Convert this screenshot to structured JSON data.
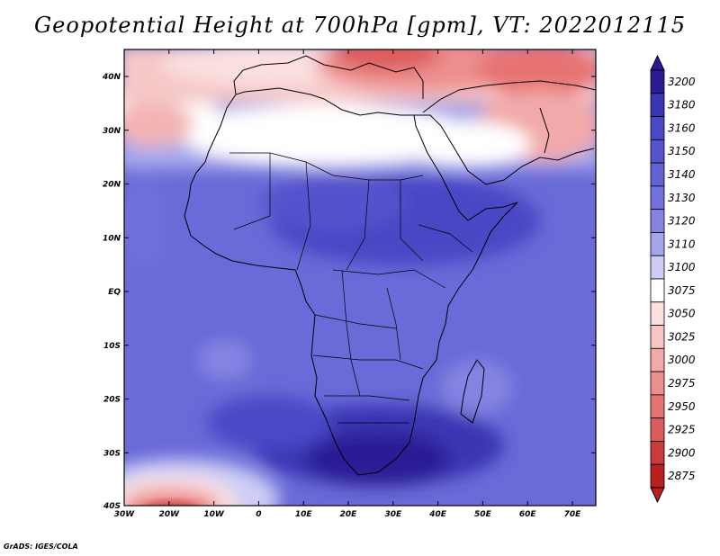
{
  "title": "Geopotential Height at 700hPa [gpm], VT: 2022012115",
  "credit": "GrADS: IGES/COLA",
  "map": {
    "lat_labels": [
      "40N",
      "30N",
      "20N",
      "10N",
      "EQ",
      "10S",
      "20S",
      "30S",
      "40S"
    ],
    "lon_labels": [
      "30W",
      "20W",
      "10W",
      "0",
      "10E",
      "20E",
      "30E",
      "40E",
      "50E",
      "60E",
      "70E"
    ],
    "lat_range": [
      -40,
      45
    ],
    "lon_range": [
      -30,
      75
    ]
  },
  "colorbar": {
    "levels": [
      "3200",
      "3180",
      "3160",
      "3150",
      "3140",
      "3130",
      "3120",
      "3110",
      "3100",
      "3075",
      "3050",
      "3025",
      "3000",
      "2975",
      "2950",
      "2925",
      "2900",
      "2875"
    ],
    "colors": [
      "#2a1a94",
      "#3a35b4",
      "#4a48c6",
      "#5554cd",
      "#6262d6",
      "#7170dc",
      "#8584e2",
      "#a6a5ec",
      "#cccdf6",
      "#ffffff",
      "#fbe0e0",
      "#f8c4c4",
      "#f2a9a9",
      "#ed8e8e",
      "#e87373",
      "#dd5b5b",
      "#cc3b3b",
      "#b81f1f"
    ]
  }
}
